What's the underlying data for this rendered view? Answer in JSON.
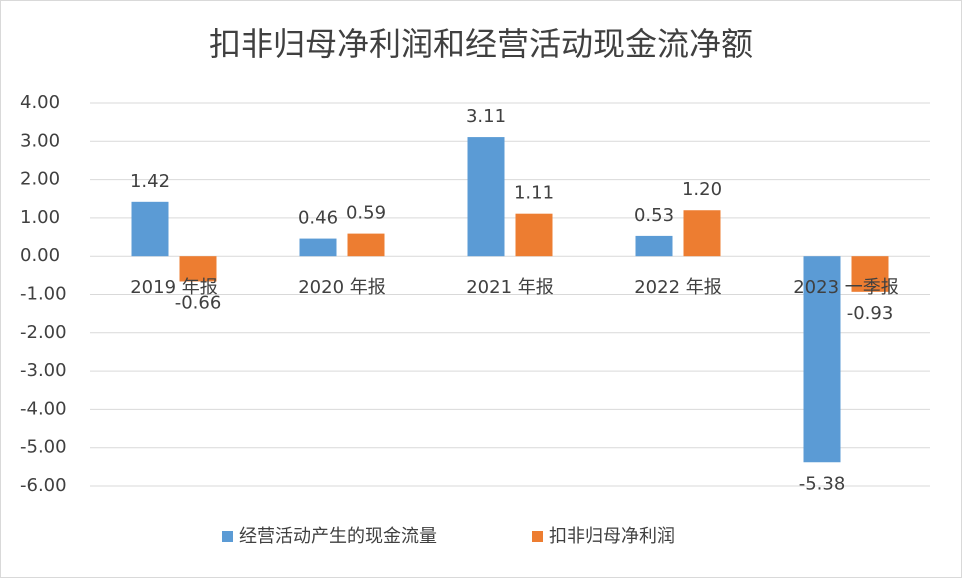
{
  "chart_data": {
    "type": "bar",
    "title": "扣非归母净利润和经营活动现金流净额",
    "categories": [
      "2019 年报",
      "2020 年报",
      "2021 年报",
      "2022 年报",
      "2023 一季报"
    ],
    "series": [
      {
        "name": "经营活动产生的现金流量",
        "color": "#5b9bd5",
        "values": [
          1.42,
          0.46,
          3.11,
          0.53,
          -5.38
        ],
        "value_labels": [
          "1.42",
          "0.46",
          "3.11",
          "0.53",
          "-5.38"
        ]
      },
      {
        "name": "扣非归母净利润",
        "color": "#ed7d31",
        "values": [
          -0.66,
          0.59,
          1.11,
          1.2,
          -0.93
        ],
        "value_labels": [
          "-0.66",
          "0.59",
          "1.11",
          "1.20",
          "-0.93"
        ]
      }
    ],
    "ylim": [
      -6,
      4
    ],
    "yticks": [
      {
        "value": -6,
        "label": "-6.00"
      },
      {
        "value": -5,
        "label": "-5.00"
      },
      {
        "value": -4,
        "label": "-4.00"
      },
      {
        "value": -3,
        "label": "-3.00"
      },
      {
        "value": -2,
        "label": "-2.00"
      },
      {
        "value": -1,
        "label": "-1.00"
      },
      {
        "value": 0,
        "label": "0.00"
      },
      {
        "value": 1,
        "label": "1.00"
      },
      {
        "value": 2,
        "label": "2.00"
      },
      {
        "value": 3,
        "label": "3.00"
      },
      {
        "value": 4,
        "label": "4.00"
      }
    ],
    "grid": true,
    "legend": "bottom"
  }
}
